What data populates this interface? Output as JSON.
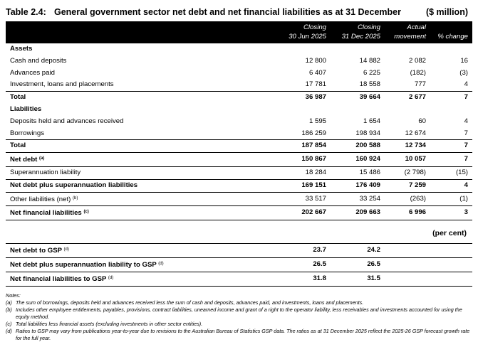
{
  "title": {
    "number": "Table 2.4:",
    "text": "General government sector net debt and net financial liabilities as at 31 December",
    "unit": "($ million)"
  },
  "columns": {
    "c1_top": "Closing",
    "c1_bot": "30 Jun 2025",
    "c2_top": "Closing",
    "c2_bot": "31 Dec 2025",
    "c3_top": "Actual",
    "c3_bot": "movement",
    "c4_top": "",
    "c4_bot": "% change"
  },
  "assets": {
    "heading": "Assets",
    "rows": [
      {
        "label": "Cash and deposits",
        "c1": "12 800",
        "c2": "14 882",
        "c3": "2 082",
        "c4": "16"
      },
      {
        "label": "Advances paid",
        "c1": "6 407",
        "c2": "6 225",
        "c3": "(182)",
        "c4": "(3)"
      },
      {
        "label": "Investment, loans and placements",
        "c1": "17 781",
        "c2": "18 558",
        "c3": "777",
        "c4": "4"
      }
    ],
    "total": {
      "label": "Total",
      "c1": "36 987",
      "c2": "39 664",
      "c3": "2 677",
      "c4": "7"
    }
  },
  "liabilities": {
    "heading": "Liabilities",
    "rows": [
      {
        "label": "Deposits held and advances received",
        "c1": "1 595",
        "c2": "1 654",
        "c3": "60",
        "c4": "4"
      },
      {
        "label": "Borrowings",
        "c1": "186 259",
        "c2": "198 934",
        "c3": "12 674",
        "c4": "7"
      }
    ],
    "total": {
      "label": "Total",
      "c1": "187 854",
      "c2": "200 588",
      "c3": "12 734",
      "c4": "7"
    }
  },
  "net_debt": {
    "label": "Net debt",
    "note": "(a)",
    "c1": "150 867",
    "c2": "160 924",
    "c3": "10 057",
    "c4": "7"
  },
  "superannuation": {
    "label": "Superannuation liability",
    "c1": "18 284",
    "c2": "15 486",
    "c3": "(2 798)",
    "c4": "(15)"
  },
  "net_debt_super": {
    "label": "Net debt plus superannuation liabilities",
    "c1": "169 151",
    "c2": "176 409",
    "c3": "7 259",
    "c4": "4"
  },
  "other_liabilities": {
    "label": "Other liabilities (net)",
    "note": "(b)",
    "c1": "33 517",
    "c2": "33 254",
    "c3": "(263)",
    "c4": "(1)"
  },
  "net_financial": {
    "label": "Net financial liabilities",
    "note": "(c)",
    "c1": "202 667",
    "c2": "209 663",
    "c3": "6 996",
    "c4": "3"
  },
  "per_cent_label": "(per cent)",
  "gsp": [
    {
      "label": "Net debt to GSP",
      "note": "(d)",
      "c1": "23.7",
      "c2": "24.2"
    },
    {
      "label": "Net debt plus superannuation liability to GSP",
      "note": "(d)",
      "c1": "26.5",
      "c2": "26.5"
    },
    {
      "label": "Net financial liabilities to GSP",
      "note": "(d)",
      "c1": "31.8",
      "c2": "31.5"
    }
  ],
  "notes": {
    "heading": "Notes:",
    "items": [
      {
        "key": "(a)",
        "text": "The sum of borrowings, deposits held and advances received less the sum of cash and deposits, advances paid, and investments, loans and placements."
      },
      {
        "key": "(b)",
        "text": "Includes other employee entitlements, payables, provisions, contract liabilities, unearned income and grant of a right to the operator liability, less receivables and investments accounted for using the equity method."
      },
      {
        "key": "(c)",
        "text": "Total liabilities less financial assets (excluding investments in other sector entities)."
      },
      {
        "key": "(d)",
        "text": "Ratios to GSP may vary from publications year-to-year due to revisions to the Australian Bureau of Statistics GSP data. The ratios as at 31 December 2025 reflect the 2025-26 GSP forecast growth rate for the full year."
      }
    ]
  }
}
